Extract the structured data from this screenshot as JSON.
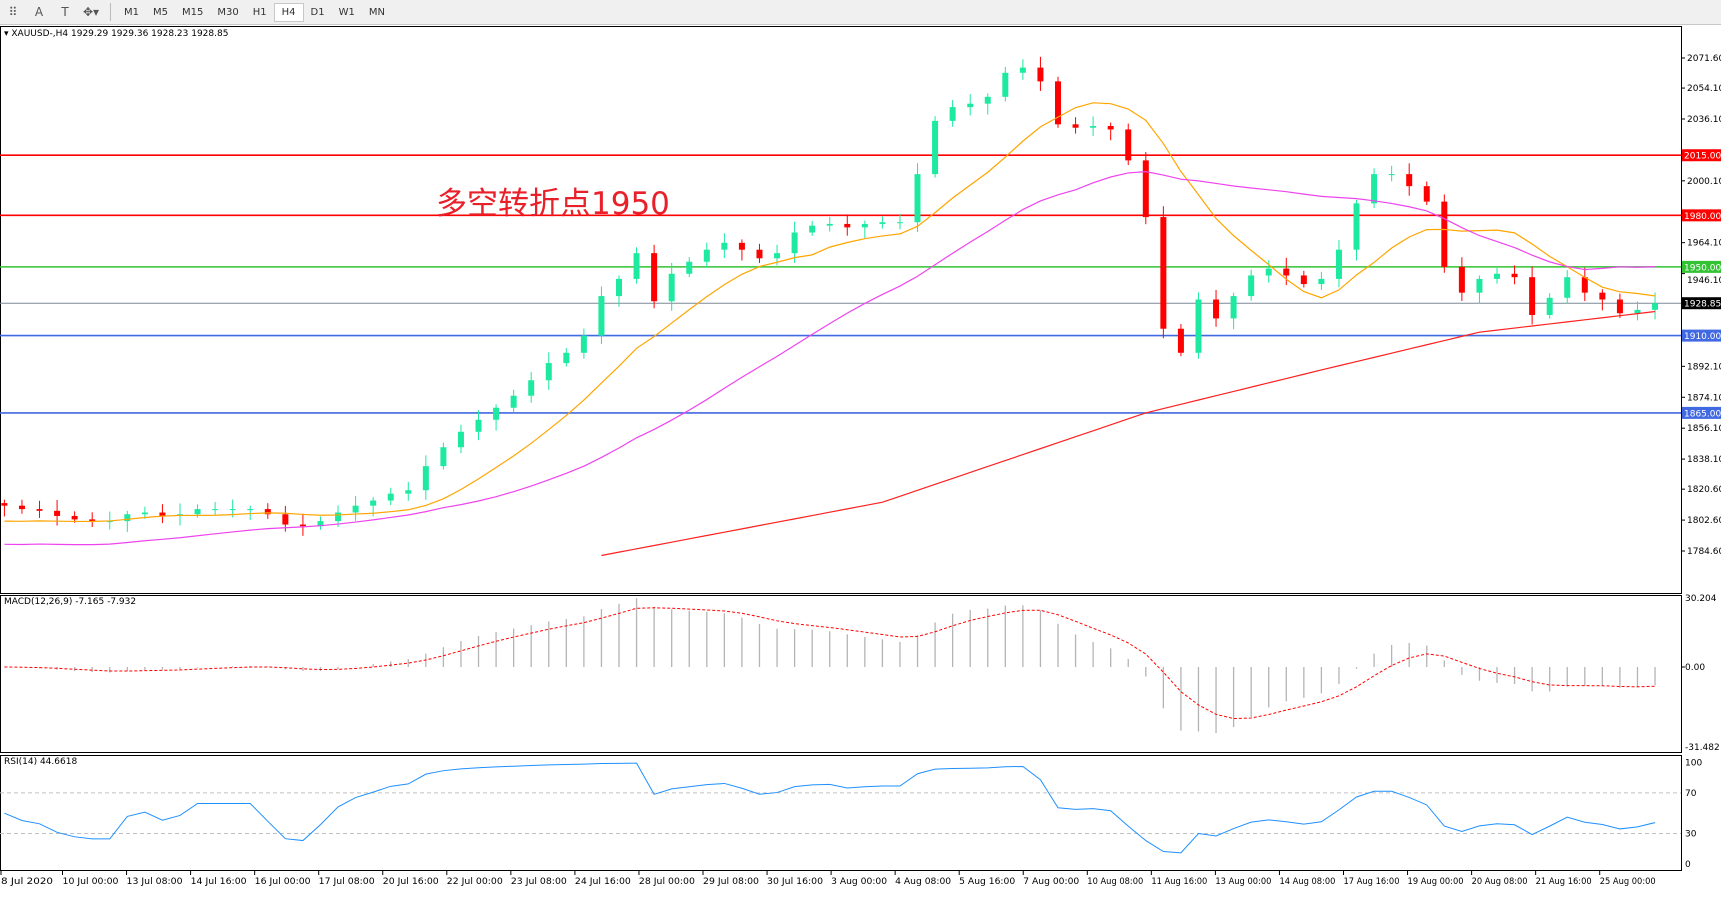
{
  "toolbar": {
    "tools": [
      "grid-icon",
      "text-A-icon",
      "text-T-icon",
      "objects-icon"
    ],
    "timeframes": [
      "M1",
      "M5",
      "M15",
      "M30",
      "H1",
      "H4",
      "D1",
      "W1",
      "MN"
    ],
    "active_timeframe": "H4"
  },
  "main": {
    "header": "XAUUSD-,H4  1929.29 1929.36 1928.23 1928.85",
    "annotation": "多空转折点1950",
    "price_ticks": [
      "2071.60",
      "2054.10",
      "2036.10",
      "2000.10",
      "1964.10",
      "1946.10",
      "1892.10",
      "1874.10",
      "1856.10",
      "1838.10",
      "1820.60",
      "1802.60",
      "1784.60"
    ],
    "levels": [
      {
        "price": 2015.0,
        "label": "2015.00",
        "color": "#ff0000"
      },
      {
        "price": 1980.0,
        "label": "1980.00",
        "color": "#ff0000"
      },
      {
        "price": 1950.0,
        "label": "1950.00",
        "color": "#33c233"
      },
      {
        "price": 1928.85,
        "label": "1928.85",
        "color": "#000000",
        "line_color": "#7b8a99"
      },
      {
        "price": 1910.0,
        "label": "1910.00",
        "color": "#4169e1"
      },
      {
        "price": 1865.0,
        "label": "1865.00",
        "color": "#4169e1"
      }
    ]
  },
  "macd": {
    "header": "MACD(12,26,9) -7.165 -7.932",
    "max_label": "30.204",
    "zero_label": "0.00",
    "min_label": "-31.482"
  },
  "rsi": {
    "header": "RSI(14) 44.6618",
    "ticks": [
      "100",
      "70",
      "30",
      "0"
    ]
  },
  "time_axis": [
    "8 Jul 2020",
    "10 Jul 00:00",
    "13 Jul 08:00",
    "14 Jul 16:00",
    "16 Jul 00:00",
    "17 Jul 08:00",
    "20 Jul 16:00",
    "22 Jul 00:00",
    "23 Jul 08:00",
    "24 Jul 16:00",
    "28 Jul 00:00",
    "29 Jul 08:00",
    "30 Jul 16:00",
    "3 Aug 00:00",
    "4 Aug 08:00",
    "5 Aug 16:00",
    "7 Aug 00:00",
    "10 Aug 08:00",
    "11 Aug 16:00",
    "13 Aug 00:00",
    "14 Aug 08:00",
    "17 Aug 16:00",
    "19 Aug 00:00",
    "20 Aug 08:00",
    "21 Aug 16:00",
    "25 Aug 00:00"
  ],
  "chart_data": {
    "type": "candlestick",
    "symbol": "XAUUSD-",
    "timeframe": "H4",
    "ylim": [
      1784.6,
      2071.6
    ],
    "up_color": "#1de9a0",
    "down_color": "#ff0000",
    "closes": [
      1811,
      1809,
      1808,
      1805,
      1803,
      1802,
      1802,
      1806,
      1807,
      1805,
      1806,
      1809,
      1809,
      1809,
      1809,
      1806,
      1800,
      1799,
      1802,
      1807,
      1811,
      1814,
      1818,
      1820,
      1834,
      1845,
      1854,
      1861,
      1868,
      1875,
      1884,
      1894,
      1900,
      1910,
      1933,
      1943,
      1958,
      1930,
      1946,
      1953,
      1960,
      1964,
      1960,
      1955,
      1958,
      1970,
      1974,
      1975,
      1973,
      1975,
      1976,
      1976,
      2004,
      2035,
      2043,
      2045,
      2049,
      2063,
      2066,
      2058,
      2033,
      2031,
      2032,
      2030,
      2012,
      1979,
      1914,
      1900,
      1931,
      1920,
      1933,
      1945,
      1949,
      1945,
      1940,
      1943,
      1960,
      1987,
      2004,
      2004,
      1997,
      1988,
      1950,
      1935,
      1943,
      1946,
      1944,
      1922,
      1932,
      1944,
      1935,
      1931,
      1923,
      1925,
      1928.85
    ],
    "ma_slow_points": [
      [
        34,
        1782
      ],
      [
        50,
        1813
      ],
      [
        65,
        1865
      ],
      [
        75,
        1890
      ],
      [
        84,
        1912
      ],
      [
        94,
        1924
      ]
    ],
    "ma_colors": {
      "fast": "#ffa500",
      "mid": "#ee44ee",
      "slow": "#ff2020"
    }
  }
}
